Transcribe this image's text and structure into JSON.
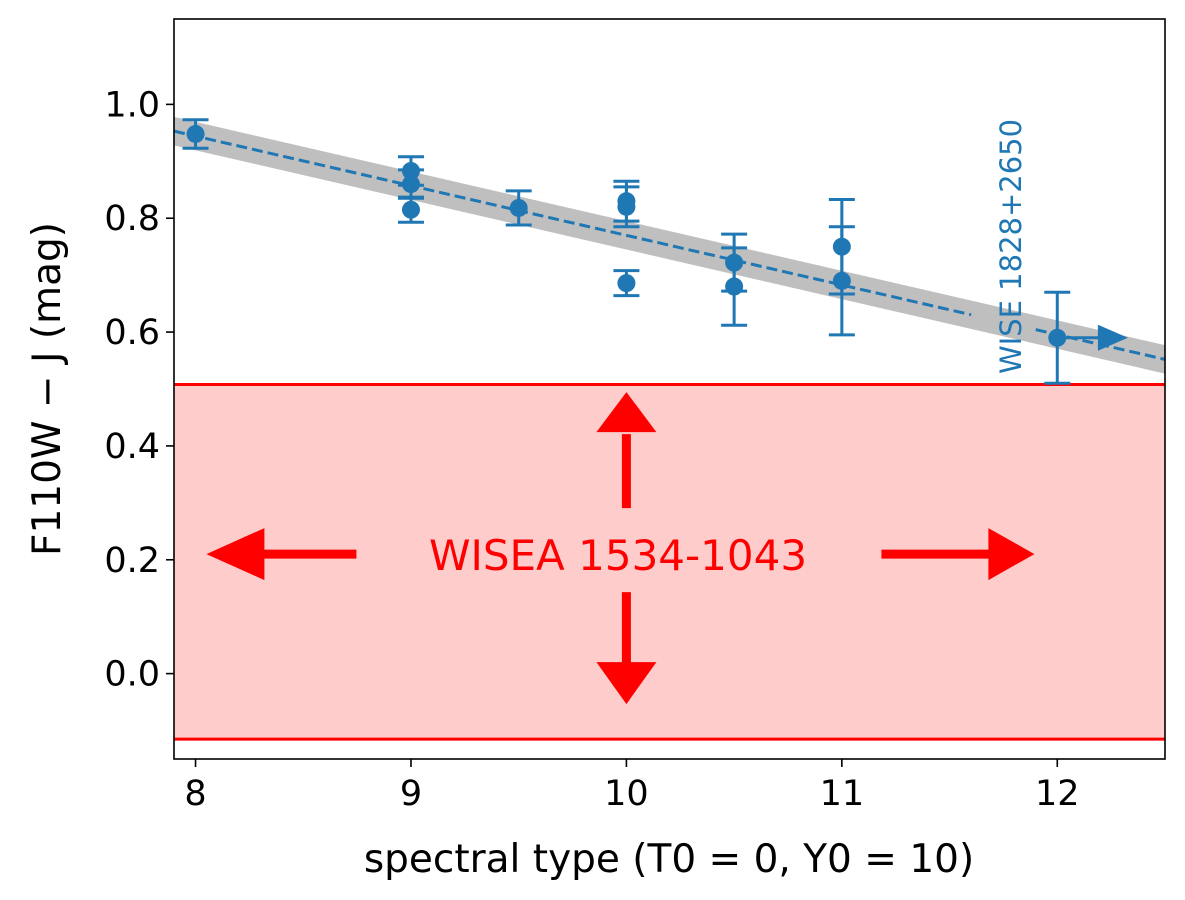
{
  "chart_data": {
    "type": "scatter",
    "xlabel": "spectral type (T0 = 0, Y0 = 10)",
    "ylabel": "F110W − J (mag)",
    "xlim": [
      7.9,
      12.5
    ],
    "ylim": [
      -0.15,
      1.15
    ],
    "xticks": [
      "8",
      "9",
      "10",
      "11",
      "12"
    ],
    "yticks": [
      "0.0",
      "0.2",
      "0.4",
      "0.6",
      "0.8",
      "1.0"
    ],
    "grid": false,
    "colors": {
      "points": "#1f77b4",
      "fit_band": "#bfbfbf",
      "region": "#ffcccc",
      "region_edge": "#ff0000",
      "arrows": "#ff0000"
    },
    "points": [
      {
        "x": 8.0,
        "y": 0.948,
        "err": 0.025
      },
      {
        "x": 9.0,
        "y": 0.883,
        "err": 0.025
      },
      {
        "x": 9.0,
        "y": 0.86,
        "err": 0.025
      },
      {
        "x": 9.0,
        "y": 0.815,
        "err": 0.022
      },
      {
        "x": 9.5,
        "y": 0.818,
        "err": 0.03
      },
      {
        "x": 10.0,
        "y": 0.83,
        "err": 0.035
      },
      {
        "x": 10.0,
        "y": 0.82,
        "err": 0.035
      },
      {
        "x": 10.0,
        "y": 0.686,
        "err": 0.022
      },
      {
        "x": 10.5,
        "y": 0.722,
        "err": 0.05
      },
      {
        "x": 10.5,
        "y": 0.68,
        "err": 0.068
      },
      {
        "x": 11.0,
        "y": 0.75,
        "err": 0.083
      },
      {
        "x": 11.0,
        "y": 0.69,
        "err": 0.095
      },
      {
        "x": 12.0,
        "y": 0.59,
        "err": 0.08
      }
    ],
    "lower_limit_point": {
      "x": 12.0,
      "y": 0.59,
      "arrow_to_x": 12.3
    },
    "fit_line": {
      "x": [
        7.9,
        12.5
      ],
      "y": [
        0.953,
        0.552
      ],
      "band_halfwidth": 0.025
    },
    "highlight_region": {
      "ymin": -0.115,
      "ymax": 0.508
    },
    "annotations": [
      {
        "text": "WISE 1828+2650",
        "x": 11.8,
        "y": 0.52
      },
      {
        "text": "WISEA 1534-1043",
        "x": 10.0,
        "y": 0.21
      }
    ]
  }
}
